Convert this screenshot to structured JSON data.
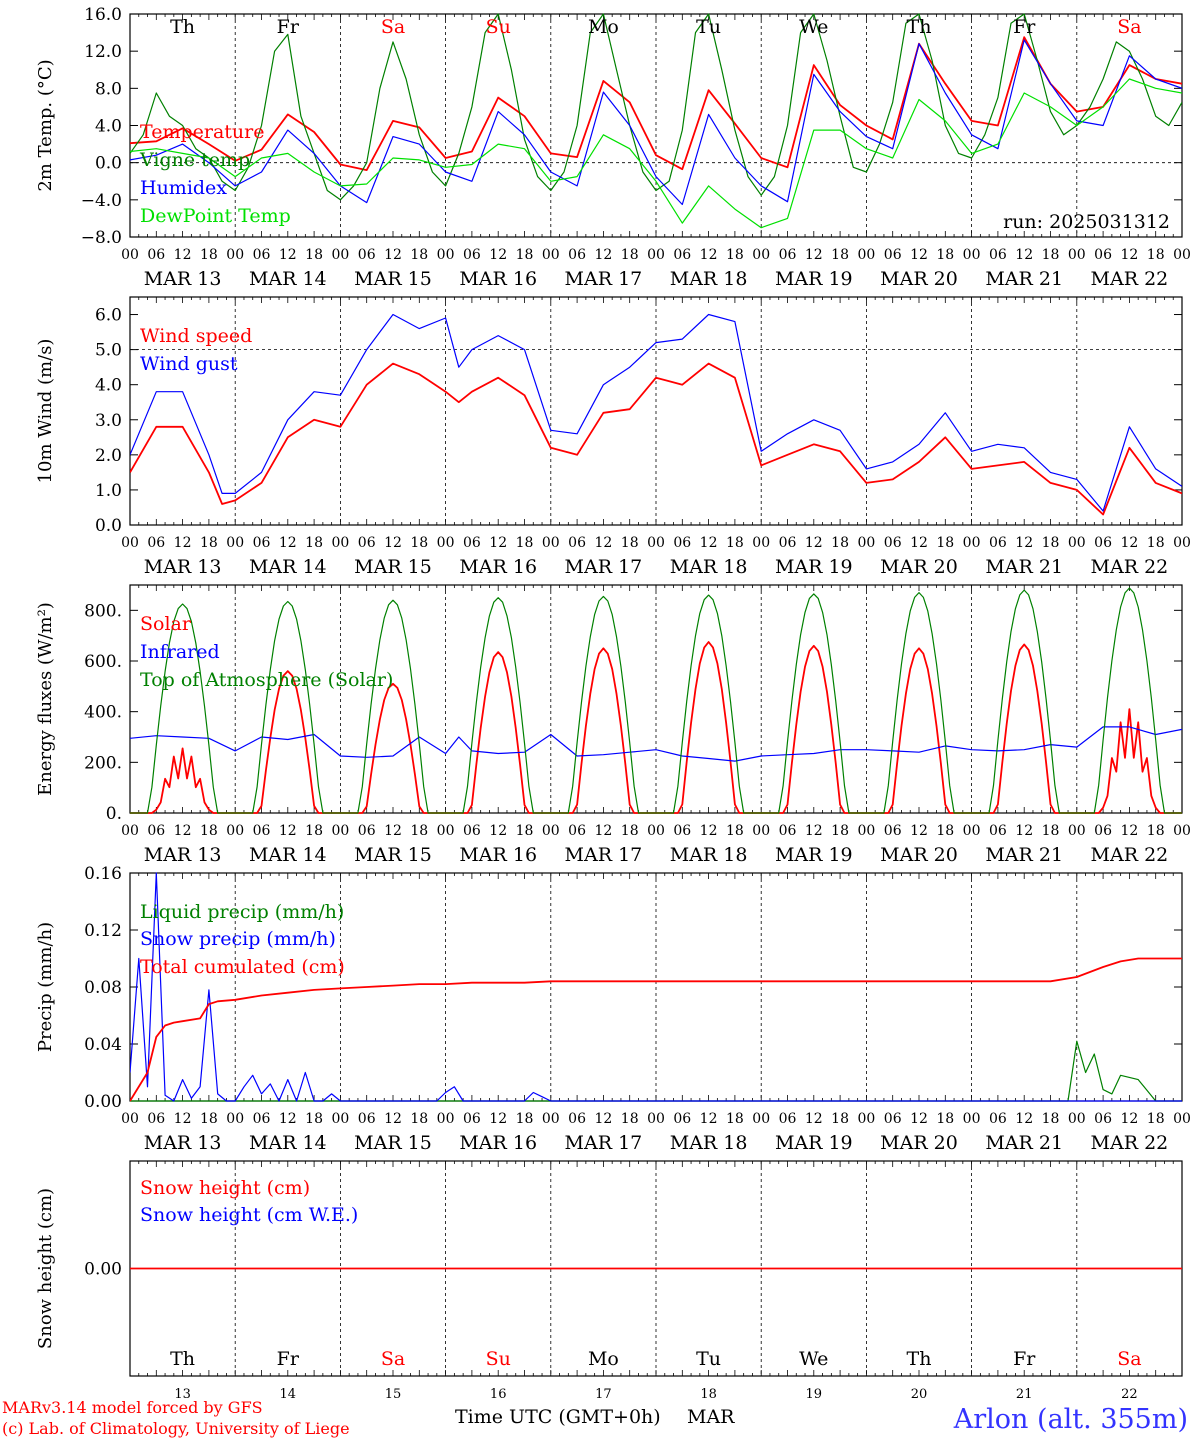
{
  "footer": {
    "model": "MARv3.14 model forced by GFS",
    "lab": "(c) Lab. of Climatology, University of Liege",
    "xlabel": "Time UTC (GMT+0h)",
    "month": "MAR",
    "station": "Arlon (alt. 355m)"
  },
  "days": {
    "names": [
      "Th",
      "Fr",
      "Sa",
      "Su",
      "Mo",
      "Tu",
      "We",
      "Th",
      "Fr",
      "Sa"
    ],
    "weekend": [
      false,
      false,
      true,
      true,
      false,
      false,
      false,
      false,
      false,
      true
    ],
    "dates": [
      "MAR 13",
      "MAR 14",
      "MAR 15",
      "MAR 16",
      "MAR 17",
      "MAR 18",
      "MAR 19",
      "MAR 20",
      "MAR 21",
      "MAR 22"
    ],
    "numbers": [
      "13",
      "14",
      "15",
      "16",
      "17",
      "18",
      "19",
      "20",
      "21",
      "22"
    ],
    "hour_ticks": [
      "00",
      "06",
      "12",
      "18"
    ],
    "end_tick": "00"
  },
  "colors": {
    "red": "#ff0000",
    "green": "#008000",
    "blue": "#0000ff",
    "light_green": "#00e000",
    "station": "#3333ff"
  },
  "chart_data": [
    {
      "type": "line",
      "ylabel": "2m Temp. (°C)",
      "ylim": [
        -8,
        16
      ],
      "yticks": [
        -8,
        -4,
        0,
        4,
        8,
        12,
        16
      ],
      "ytick_labels": [
        "−8.0",
        "−4.0",
        "0.0",
        "4.0",
        "8.0",
        "12.0",
        "16.0"
      ],
      "ref_line": 0,
      "annotation": "run: 2025031312",
      "x_unit": "hours since MAR 13 00 UTC",
      "series": [
        {
          "name": "Temperature",
          "color": "red",
          "x": [
            0,
            6,
            12,
            18,
            24,
            30,
            36,
            42,
            48,
            54,
            60,
            66,
            72,
            78,
            84,
            90,
            96,
            102,
            108,
            114,
            120,
            126,
            132,
            138,
            144,
            150,
            156,
            162,
            168,
            174,
            180,
            186,
            192,
            198,
            204,
            210,
            216,
            222,
            228,
            234,
            240
          ],
          "y": [
            2.1,
            2.3,
            3.7,
            2.0,
            0.2,
            1.4,
            5.2,
            3.3,
            -0.2,
            -0.8,
            4.5,
            3.8,
            0.5,
            1.2,
            7.0,
            5.0,
            1.0,
            0.6,
            8.8,
            6.5,
            0.8,
            -0.7,
            7.8,
            4.2,
            0.5,
            -0.5,
            10.5,
            6.2,
            4.0,
            2.5,
            12.8,
            8.5,
            4.5,
            4.0,
            13.5,
            8.5,
            5.5,
            6.0,
            10.5,
            9.0,
            8.5
          ]
        },
        {
          "name": "Vigne temp",
          "color": "green",
          "x": [
            0,
            3,
            6,
            9,
            12,
            15,
            18,
            21,
            24,
            27,
            30,
            33,
            36,
            39,
            42,
            45,
            48,
            51,
            54,
            57,
            60,
            63,
            66,
            69,
            72,
            75,
            78,
            81,
            84,
            87,
            90,
            93,
            96,
            99,
            102,
            105,
            108,
            111,
            114,
            117,
            120,
            123,
            126,
            129,
            132,
            135,
            138,
            141,
            144,
            147,
            150,
            153,
            156,
            159,
            162,
            165,
            168,
            171,
            174,
            177,
            180,
            183,
            186,
            189,
            192,
            195,
            198,
            201,
            204,
            207,
            210,
            213,
            216,
            219,
            222,
            225,
            228,
            231,
            234,
            237,
            240
          ],
          "y": [
            1.0,
            3.0,
            7.5,
            5.0,
            4.0,
            1.5,
            0.5,
            -2.0,
            -3.0,
            -0.5,
            4.0,
            12.0,
            13.8,
            5.0,
            1.0,
            -3.0,
            -4.0,
            -2.5,
            0.0,
            8.0,
            13.0,
            9.0,
            3.0,
            -1.0,
            -2.5,
            1.0,
            6.0,
            14.0,
            16.0,
            10.0,
            2.5,
            -1.5,
            -3.0,
            -1.0,
            4.0,
            14.0,
            16.0,
            10.0,
            4.0,
            -1.0,
            -3.0,
            -2.0,
            3.5,
            14.0,
            16.0,
            10.0,
            3.5,
            -1.5,
            -3.5,
            -1.5,
            4.0,
            14.0,
            16.0,
            11.0,
            5.0,
            -0.5,
            -1.0,
            2.0,
            6.5,
            15.0,
            16.0,
            11.0,
            4.0,
            1.0,
            0.5,
            3.0,
            7.0,
            15.0,
            16.0,
            11.0,
            5.5,
            3.0,
            4.0,
            6.0,
            9.0,
            13.0,
            12.0,
            9.0,
            5.0,
            4.0,
            6.5
          ]
        },
        {
          "name": "Humidex",
          "color": "blue",
          "x": [
            0,
            6,
            12,
            18,
            24,
            30,
            36,
            42,
            48,
            54,
            60,
            66,
            72,
            78,
            84,
            90,
            96,
            102,
            108,
            114,
            120,
            126,
            132,
            138,
            144,
            150,
            156,
            162,
            168,
            174,
            180,
            186,
            192,
            198,
            204,
            210,
            216,
            222,
            228,
            234,
            240
          ],
          "y": [
            0.3,
            0.8,
            2.0,
            0.0,
            -2.5,
            -1.0,
            3.5,
            1.0,
            -2.5,
            -4.3,
            2.8,
            2.0,
            -1.0,
            -2.0,
            5.5,
            3.0,
            -1.0,
            -2.5,
            7.6,
            4.0,
            -1.5,
            -4.5,
            5.2,
            0.5,
            -2.5,
            -4.2,
            9.5,
            5.5,
            2.8,
            1.5,
            12.8,
            7.5,
            3.0,
            1.5,
            13.2,
            8.5,
            4.5,
            4.0,
            11.5,
            9.0,
            8.0
          ]
        },
        {
          "name": "DewPoint Temp",
          "color": "light_green",
          "x": [
            0,
            6,
            12,
            18,
            24,
            30,
            36,
            42,
            48,
            54,
            60,
            66,
            72,
            78,
            84,
            90,
            96,
            102,
            108,
            114,
            120,
            126,
            132,
            138,
            144,
            150,
            156,
            162,
            168,
            174,
            180,
            186,
            192,
            198,
            204,
            210,
            216,
            222,
            228,
            234,
            240
          ],
          "y": [
            1.2,
            1.5,
            1.0,
            0.5,
            -1.5,
            0.5,
            1.0,
            -1.0,
            -2.5,
            -2.3,
            0.5,
            0.3,
            -0.5,
            -0.2,
            2.0,
            1.5,
            -2.0,
            -1.5,
            3.0,
            1.5,
            -2.0,
            -6.5,
            -2.5,
            -5.0,
            -7.0,
            -6.0,
            3.5,
            3.5,
            1.5,
            0.5,
            6.8,
            4.5,
            1.0,
            2.0,
            7.5,
            6.0,
            4.0,
            6.0,
            9.0,
            8.0,
            7.5
          ]
        }
      ]
    },
    {
      "type": "line",
      "ylabel": "10m Wind (m/s)",
      "ylim": [
        0,
        6.5
      ],
      "yticks": [
        0,
        1,
        2,
        3,
        4,
        5,
        6
      ],
      "ytick_labels": [
        "0.0",
        "1.0",
        "2.0",
        "3.0",
        "4.0",
        "5.0",
        "6.0"
      ],
      "ref_line": 5,
      "x_unit": "hours since MAR 13 00 UTC",
      "series": [
        {
          "name": "Wind speed",
          "color": "red",
          "x": [
            0,
            6,
            12,
            18,
            21,
            24,
            30,
            36,
            42,
            48,
            54,
            60,
            66,
            72,
            75,
            78,
            84,
            90,
            96,
            102,
            108,
            114,
            120,
            126,
            132,
            138,
            144,
            150,
            156,
            162,
            168,
            174,
            180,
            186,
            192,
            198,
            204,
            210,
            216,
            222,
            228,
            234,
            240
          ],
          "y": [
            1.5,
            2.8,
            2.8,
            1.5,
            0.6,
            0.7,
            1.2,
            2.5,
            3.0,
            2.8,
            4.0,
            4.6,
            4.3,
            3.8,
            3.5,
            3.8,
            4.2,
            3.7,
            2.2,
            2.0,
            3.2,
            3.3,
            4.2,
            4.0,
            4.6,
            4.2,
            1.7,
            2.0,
            2.3,
            2.1,
            1.2,
            1.3,
            1.8,
            2.5,
            1.6,
            1.7,
            1.8,
            1.2,
            1.0,
            0.3,
            2.2,
            1.2,
            0.9
          ]
        },
        {
          "name": "Wind gust",
          "color": "blue",
          "x": [
            0,
            6,
            12,
            18,
            21,
            24,
            30,
            36,
            42,
            48,
            54,
            60,
            66,
            72,
            75,
            78,
            84,
            90,
            96,
            102,
            108,
            114,
            120,
            126,
            132,
            138,
            144,
            150,
            156,
            162,
            168,
            174,
            180,
            186,
            192,
            198,
            204,
            210,
            216,
            222,
            228,
            234,
            240
          ],
          "y": [
            2.0,
            3.8,
            3.8,
            2.0,
            0.9,
            0.9,
            1.5,
            3.0,
            3.8,
            3.7,
            5.0,
            6.0,
            5.6,
            5.9,
            4.5,
            5.0,
            5.4,
            5.0,
            2.7,
            2.6,
            4.0,
            4.5,
            5.2,
            5.3,
            6.0,
            5.8,
            2.1,
            2.6,
            3.0,
            2.7,
            1.6,
            1.8,
            2.3,
            3.2,
            2.1,
            2.3,
            2.2,
            1.5,
            1.3,
            0.4,
            2.8,
            1.6,
            1.1
          ]
        }
      ]
    },
    {
      "type": "line",
      "ylabel": "Energy fluxes (W/m²)",
      "ylim": [
        0,
        900
      ],
      "yticks": [
        0,
        200,
        400,
        600,
        800
      ],
      "ytick_labels": [
        "0.",
        "200.",
        "400.",
        "600.",
        "800."
      ],
      "x_unit": "hours since MAR 13 00 UTC",
      "daily_solar_peaks": [
        255,
        560,
        510,
        635,
        650,
        675,
        660,
        650,
        665,
        410
      ],
      "daily_toa_peaks": [
        825,
        835,
        840,
        850,
        855,
        860,
        865,
        870,
        880,
        888
      ],
      "series": [
        {
          "name": "Solar",
          "color": "red"
        },
        {
          "name": "Infrared",
          "color": "blue",
          "x": [
            0,
            6,
            12,
            18,
            24,
            30,
            36,
            42,
            48,
            54,
            60,
            66,
            72,
            75,
            78,
            84,
            90,
            96,
            102,
            108,
            114,
            120,
            126,
            132,
            138,
            144,
            150,
            156,
            162,
            168,
            174,
            180,
            186,
            192,
            198,
            204,
            210,
            216,
            222,
            228,
            234,
            240
          ],
          "y": [
            295,
            305,
            300,
            295,
            245,
            300,
            290,
            310,
            225,
            220,
            225,
            300,
            235,
            300,
            245,
            235,
            240,
            310,
            225,
            230,
            240,
            250,
            225,
            215,
            205,
            225,
            230,
            235,
            250,
            250,
            245,
            240,
            265,
            250,
            245,
            250,
            270,
            260,
            340,
            340,
            310,
            330
          ]
        },
        {
          "name": "Top of Atmosphere (Solar)",
          "color": "green"
        }
      ]
    },
    {
      "type": "line",
      "ylabel": "Precip (mm/h)",
      "ylim": [
        0,
        0.16
      ],
      "yticks": [
        0,
        0.04,
        0.08,
        0.12,
        0.16
      ],
      "ytick_labels": [
        "0.00",
        "0.04",
        "0.08",
        "0.12",
        "0.16"
      ],
      "x_unit": "hours since MAR 13 00 UTC",
      "series": [
        {
          "name": "Liquid precip (mm/h)",
          "color": "green",
          "x": [
            0,
            204,
            214,
            216,
            218,
            220,
            222,
            224,
            226,
            230,
            234,
            240
          ],
          "y": [
            0,
            0,
            0,
            0.042,
            0.02,
            0.033,
            0.008,
            0.005,
            0.018,
            0.015,
            0,
            0
          ]
        },
        {
          "name": "Snow precip (mm/h)",
          "color": "blue",
          "x": [
            0,
            2,
            4,
            6,
            8,
            10,
            12,
            14,
            16,
            18,
            20,
            22,
            24,
            26,
            28,
            30,
            32,
            34,
            36,
            38,
            40,
            42,
            44,
            46,
            48,
            70,
            72,
            74,
            76,
            78,
            90,
            92,
            94,
            96,
            240
          ],
          "y": [
            0.02,
            0.1,
            0.01,
            0.16,
            0.004,
            0.0,
            0.015,
            0.002,
            0.01,
            0.078,
            0.005,
            0.0,
            0.0,
            0.01,
            0.018,
            0.005,
            0.012,
            0.0,
            0.015,
            0.0,
            0.02,
            0.0,
            0.0,
            0.005,
            0.0,
            0.0,
            0.006,
            0.01,
            0.0,
            0.0,
            0.0,
            0.006,
            0.003,
            0.0,
            0.0
          ]
        },
        {
          "name": "Total cumulated (cm)",
          "color": "red",
          "x": [
            0,
            4,
            6,
            8,
            10,
            12,
            16,
            18,
            20,
            24,
            30,
            36,
            42,
            48,
            54,
            60,
            66,
            72,
            78,
            84,
            90,
            96,
            102,
            108,
            144,
            180,
            210,
            216,
            222,
            226,
            230,
            240
          ],
          "y": [
            0,
            0.02,
            0.045,
            0.053,
            0.055,
            0.056,
            0.058,
            0.068,
            0.07,
            0.071,
            0.074,
            0.076,
            0.078,
            0.079,
            0.08,
            0.081,
            0.082,
            0.082,
            0.083,
            0.083,
            0.083,
            0.084,
            0.084,
            0.084,
            0.084,
            0.084,
            0.084,
            0.087,
            0.094,
            0.098,
            0.1,
            0.1
          ]
        }
      ]
    },
    {
      "type": "line",
      "ylabel": "Snow height (cm)",
      "ylim": [
        -0.1,
        0.1
      ],
      "yticks": [
        0
      ],
      "ytick_labels": [
        "0.00"
      ],
      "x_unit": "hours since MAR 13 00 UTC",
      "series": [
        {
          "name": "Snow height (cm)",
          "color": "red",
          "x": [
            0,
            240
          ],
          "y": [
            0,
            0
          ]
        },
        {
          "name": "Snow height (cm W.E.)",
          "color": "blue"
        }
      ]
    }
  ]
}
